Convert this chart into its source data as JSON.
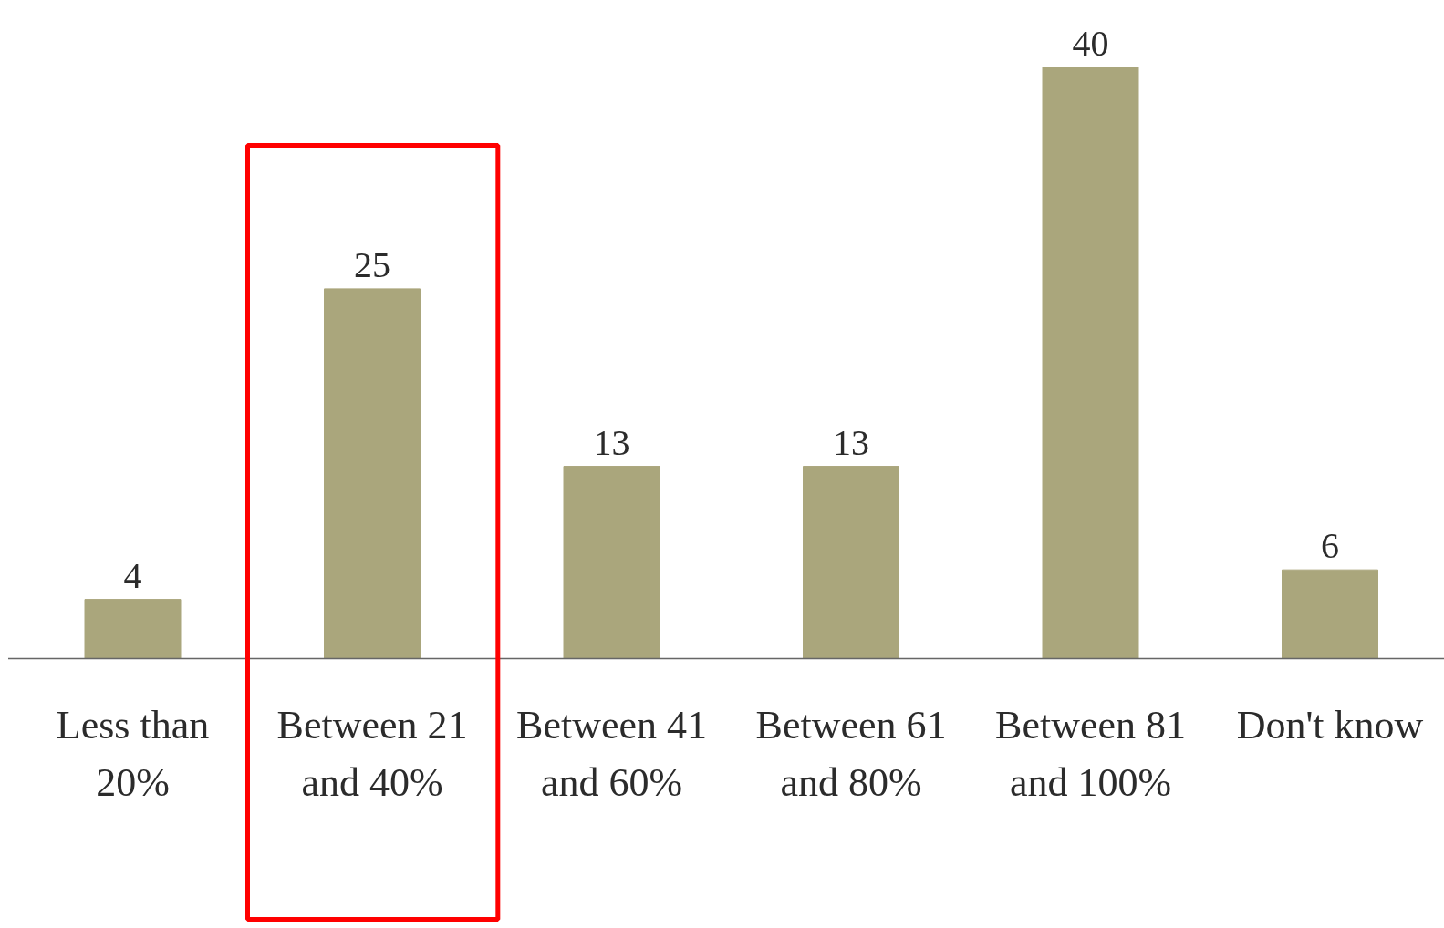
{
  "chart_data": {
    "type": "bar",
    "categories": [
      "Less than 20%",
      "Between 21 and 40%",
      "Between 41 and 60%",
      "Between 61 and 80%",
      "Between 81 and 100%",
      "Don't know"
    ],
    "values": [
      4,
      25,
      13,
      13,
      40,
      6
    ],
    "color": "#aaa67c",
    "data_labels": true
  }
}
